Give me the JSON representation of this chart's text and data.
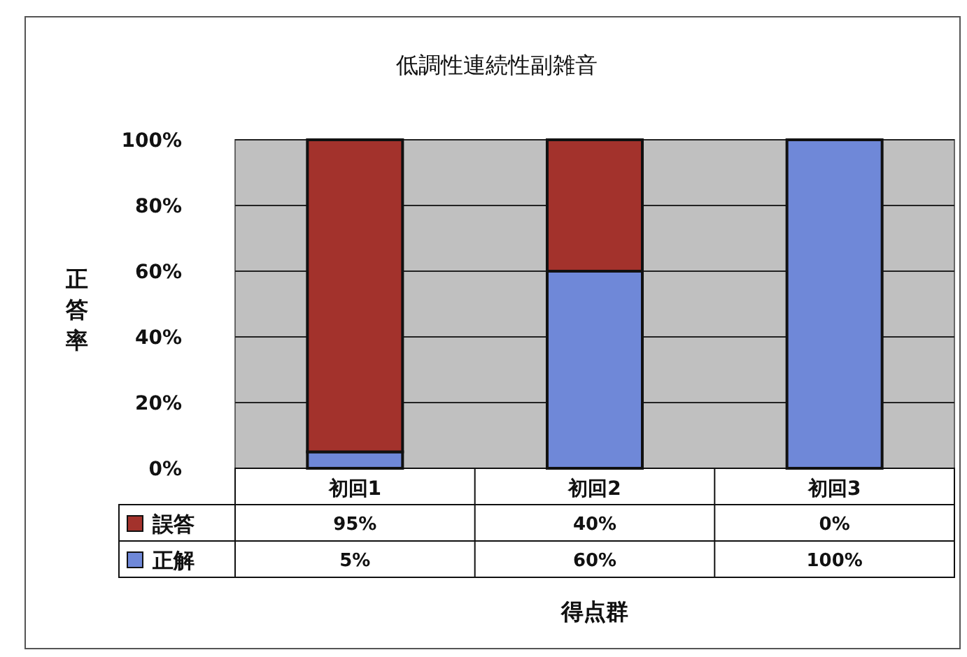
{
  "chart_data": {
    "type": "bar",
    "stacked": true,
    "title": "低調性連続性副雑音",
    "xlabel": "得点群",
    "ylabel": "正答率",
    "categories": [
      "初回1",
      "初回2",
      "初回3"
    ],
    "series": [
      {
        "name": "正解",
        "color": "#6f88d8",
        "values": [
          5,
          60,
          100
        ],
        "value_labels": [
          "5%",
          "60%",
          "100%"
        ]
      },
      {
        "name": "誤答",
        "color": "#a3322c",
        "values": [
          95,
          40,
          0
        ],
        "value_labels": [
          "95%",
          "40%",
          "0%"
        ]
      }
    ],
    "ylim": [
      0,
      100
    ],
    "yticks": [
      {
        "value": 0,
        "label": "0%"
      },
      {
        "value": 20,
        "label": "20%"
      },
      {
        "value": 40,
        "label": "40%"
      },
      {
        "value": 60,
        "label": "60%"
      },
      {
        "value": 80,
        "label": "80%"
      },
      {
        "value": 100,
        "label": "100%"
      }
    ],
    "grid": "y",
    "legend": "bottom left"
  }
}
